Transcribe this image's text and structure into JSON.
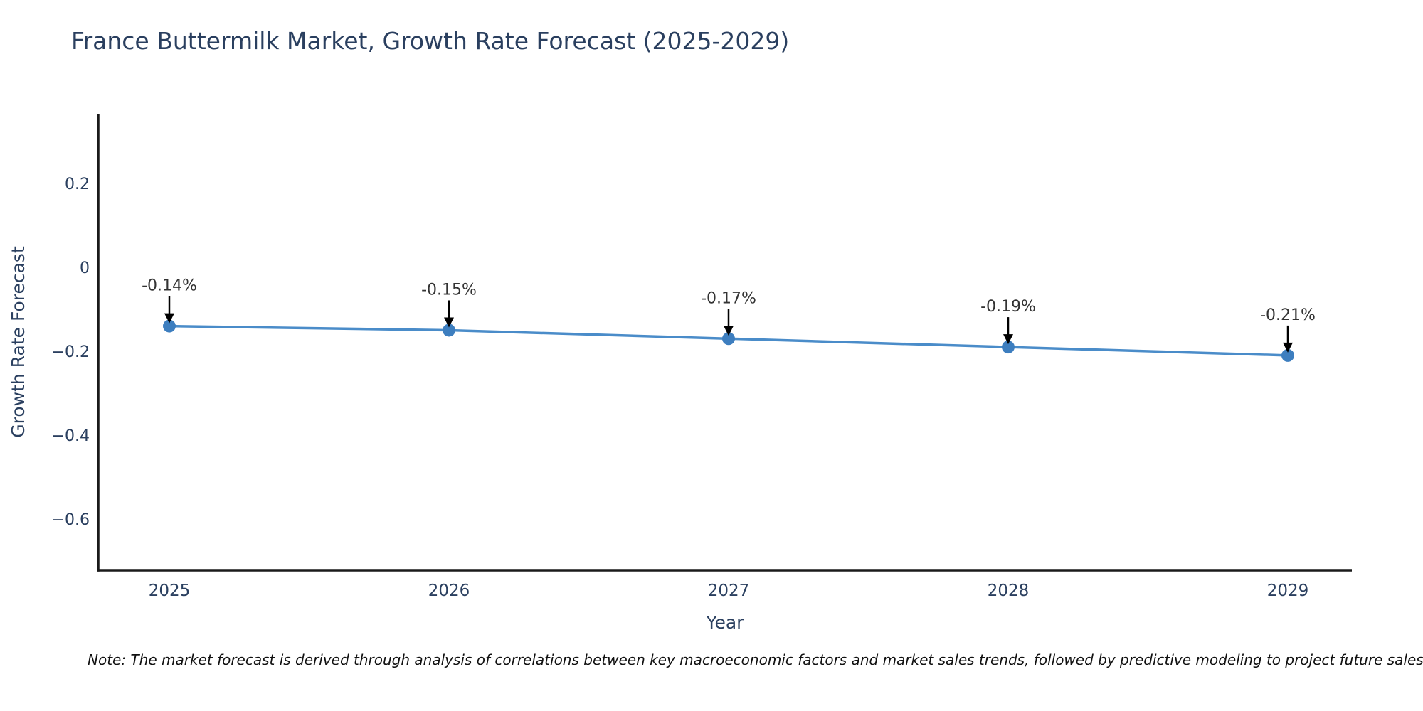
{
  "page": {
    "background": "#ffffff"
  },
  "chart_data": {
    "type": "line",
    "title": "France Buttermilk Market, Growth Rate Forecast (2025-2029)",
    "xlabel": "Year",
    "ylabel": "Growth Rate Forecast",
    "categories": [
      "2025",
      "2026",
      "2027",
      "2028",
      "2029"
    ],
    "series": [
      {
        "name": "Growth Rate Forecast",
        "values": [
          -0.14,
          -0.15,
          -0.17,
          -0.19,
          -0.21
        ],
        "point_labels": [
          "-0.14%",
          "-0.15%",
          "-0.17%",
          "-0.19%",
          "-0.21%"
        ]
      }
    ],
    "ylim": [
      -0.722,
      0.366
    ],
    "yticks": {
      "values": [
        0.2,
        0,
        -0.2,
        -0.4,
        -0.6
      ],
      "labels": [
        "0.2",
        "0",
        "−0.2",
        "−0.4",
        "−0.6"
      ]
    },
    "grid": false,
    "legend": "none",
    "colors": {
      "line": "#4a8cc9",
      "marker": "#3d7ebf",
      "axis": "#1a1a1a",
      "text": "#2a3f5f",
      "annotation_text": "#333333",
      "annotation_arrow": "#000000"
    }
  },
  "note": "Note: The market forecast is derived through analysis of correlations between key macroeconomic factors and market sales trends, followed by predictive modeling to project future sales"
}
